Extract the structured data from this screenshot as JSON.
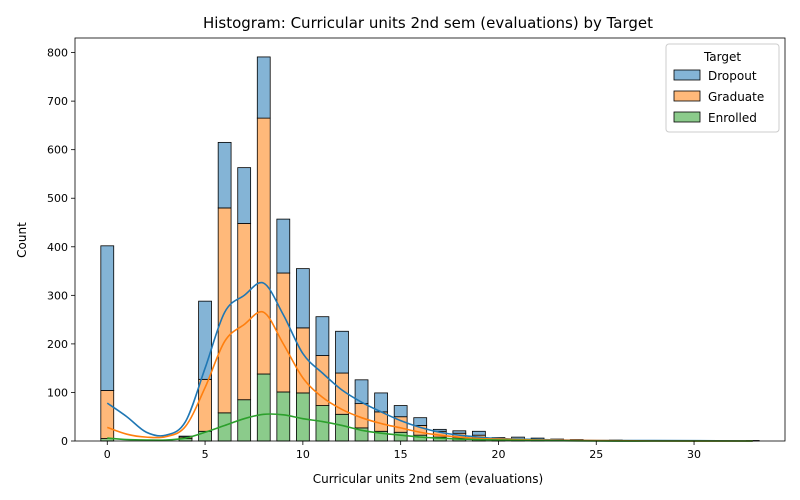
{
  "chart_data": {
    "type": "bar",
    "stacked": true,
    "title": "Histogram: Curricular units 2nd sem (evaluations) by Target",
    "xlabel": "Curricular units 2nd sem (evaluations)",
    "ylabel": "Count",
    "xlim": [
      -1.65,
      34.65
    ],
    "ylim": [
      0,
      830
    ],
    "xticks": [
      0,
      5,
      10,
      15,
      20,
      25,
      30
    ],
    "yticks": [
      0,
      100,
      200,
      300,
      400,
      500,
      600,
      700,
      800
    ],
    "bin_width": 0.66,
    "grid": false,
    "legend": {
      "title": "Target",
      "position": "top-right"
    },
    "colors": {
      "Dropout": "#1f77b4",
      "Graduate": "#ff7f0e",
      "Enrolled": "#2ca02c"
    },
    "x": [
      0,
      4,
      5,
      6,
      7,
      8,
      9,
      10,
      11,
      12,
      13,
      14,
      15,
      16,
      17,
      18,
      19,
      20,
      21,
      22,
      23,
      24,
      26,
      28,
      33
    ],
    "series": [
      {
        "name": "Enrolled",
        "values": [
          5,
          5,
          20,
          58,
          85,
          138,
          101,
          99,
          73,
          55,
          27,
          20,
          18,
          12,
          8,
          6,
          4,
          2,
          1,
          1,
          1,
          1,
          0,
          0,
          0
        ]
      },
      {
        "name": "Graduate",
        "values": [
          99,
          3,
          107,
          422,
          363,
          527,
          245,
          134,
          103,
          85,
          50,
          40,
          32,
          20,
          12,
          10,
          8,
          3,
          2,
          2,
          1,
          1,
          1,
          0,
          1
        ]
      },
      {
        "name": "Dropout",
        "values": [
          298,
          2,
          161,
          135,
          115,
          126,
          111,
          122,
          80,
          86,
          49,
          39,
          23,
          16,
          4,
          5,
          8,
          2,
          5,
          3,
          2,
          1,
          1,
          1,
          0
        ]
      }
    ],
    "kde": [
      {
        "name": "Dropout",
        "x": [
          0,
          1,
          2,
          3,
          4,
          5,
          6,
          7,
          8,
          9,
          10,
          11,
          12,
          13,
          14,
          15,
          16,
          17,
          18,
          19,
          20,
          22,
          25,
          28,
          33
        ],
        "y": [
          78,
          50,
          18,
          12,
          40,
          150,
          265,
          300,
          325,
          260,
          180,
          140,
          105,
          80,
          60,
          42,
          28,
          18,
          12,
          8,
          5,
          3,
          1,
          1,
          0
        ]
      },
      {
        "name": "Graduate",
        "x": [
          0,
          1,
          2,
          3,
          4,
          5,
          6,
          7,
          8,
          9,
          10,
          11,
          12,
          13,
          14,
          15,
          16,
          17,
          18,
          19,
          20,
          22,
          25,
          28,
          33
        ],
        "y": [
          28,
          14,
          8,
          9,
          30,
          110,
          205,
          240,
          265,
          200,
          130,
          90,
          65,
          48,
          36,
          27,
          18,
          12,
          8,
          5,
          4,
          2,
          1,
          0,
          0
        ]
      },
      {
        "name": "Enrolled",
        "x": [
          0,
          1,
          2,
          3,
          4,
          5,
          6,
          7,
          8,
          9,
          10,
          11,
          12,
          13,
          14,
          15,
          16,
          17,
          18,
          19,
          20,
          22,
          25,
          28,
          33
        ],
        "y": [
          6,
          3,
          2,
          2,
          6,
          18,
          32,
          46,
          55,
          54,
          46,
          40,
          32,
          22,
          16,
          12,
          8,
          6,
          4,
          3,
          2,
          1,
          0,
          0,
          0
        ]
      }
    ]
  }
}
